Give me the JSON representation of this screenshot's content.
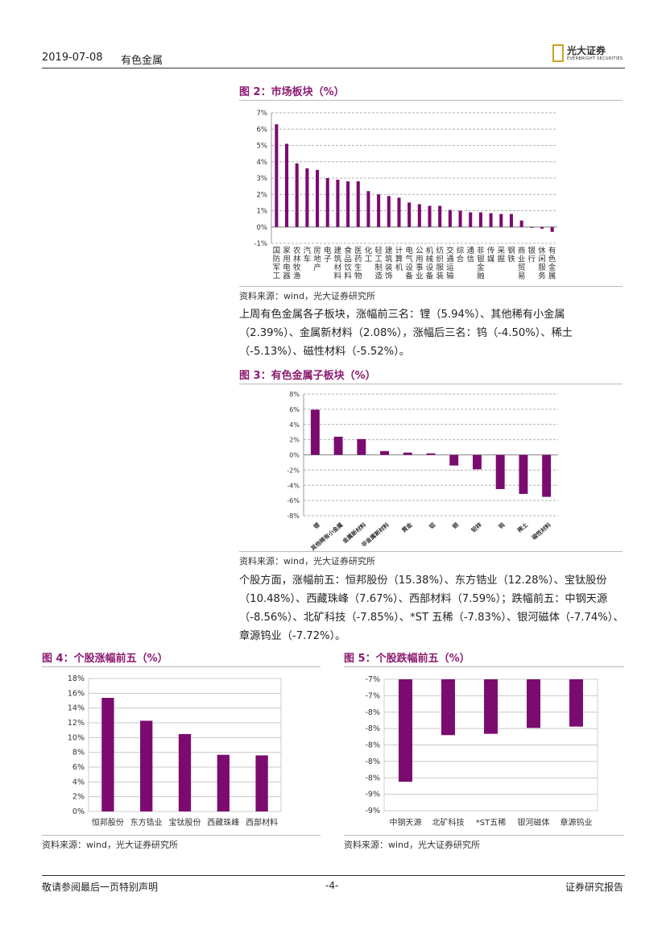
{
  "header": {
    "date": "2019-07-08",
    "sector": "有色金属",
    "logo_cn": "光大证券",
    "logo_en": "EVERBRIGHT SECURITIES"
  },
  "colors": {
    "bar": "#7b0b6f",
    "title": "#8b1a70"
  },
  "fig2": {
    "title": "图 2：市场板块（%）",
    "source": "资料来源：wind，光大证券研究所",
    "chart_data": {
      "type": "bar",
      "categories": [
        "国防军工",
        "家用电器",
        "农林牧渔",
        "汽车",
        "房地产",
        "电子",
        "建筑材料",
        "食品饮料",
        "医药生物",
        "化工",
        "轻工制造",
        "建筑装饰",
        "计算机",
        "电气设备",
        "公用事业",
        "机械设备",
        "纺织服装",
        "交通运输",
        "综合",
        "通信",
        "非银金融",
        "传媒",
        "采掘",
        "钢铁",
        "商业贸易",
        "银行",
        "休闲服务",
        "有色金属"
      ],
      "values": [
        6.3,
        5.1,
        3.9,
        3.6,
        3.5,
        3.0,
        2.9,
        2.8,
        2.8,
        2.2,
        2.0,
        1.9,
        1.8,
        1.5,
        1.4,
        1.3,
        1.3,
        1.05,
        1.0,
        0.9,
        0.9,
        0.85,
        0.8,
        0.8,
        0.4,
        -0.05,
        -0.1,
        -0.3
      ],
      "ylim": [
        -1,
        7
      ],
      "yticks": [
        "-1%",
        "0%",
        "1%",
        "2%",
        "3%",
        "4%",
        "5%",
        "6%",
        "7%"
      ]
    }
  },
  "para1": "上周有色金属各子板块，涨幅前三名：锂（5.94%）、其他稀有小金属（2.39%）、金属新材料（2.08%），涨幅后三名：钨（-4.50%）、稀土（-5.13%）、磁性材料（-5.52%）。",
  "fig3": {
    "title": "图 3：有色金属子板块（%）",
    "source": "资料来源：wind，光大证券研究所",
    "chart_data": {
      "type": "bar",
      "categories": [
        "锂",
        "其他稀有小金属",
        "金属新材料",
        "非金属新材料",
        "黄金",
        "铝",
        "铜",
        "铅锌",
        "钨",
        "稀土",
        "磁性材料"
      ],
      "values": [
        5.94,
        2.39,
        2.08,
        0.5,
        0.3,
        0.2,
        -1.4,
        -1.9,
        -4.5,
        -5.13,
        -5.52
      ],
      "ylim": [
        -8,
        8
      ],
      "yticks": [
        "-8%",
        "-6%",
        "-4%",
        "-2%",
        "0%",
        "2%",
        "4%",
        "6%",
        "8%"
      ]
    }
  },
  "para2": "个股方面，涨幅前五：恒邦股份（15.38%）、东方锆业（12.28%）、宝钛股份（10.48%）、西藏珠峰（7.67%）、西部材料（7.59%）；跌幅前五：中钢天源（-8.56%）、北矿科技（-7.85%）、*ST 五稀（-7.83%）、银河磁体（-7.74%）、章源钨业（-7.72%）。",
  "fig4": {
    "title": "图 4：个股涨幅前五（%）",
    "source": "资料来源：wind，光大证券研究所",
    "chart_data": {
      "type": "bar",
      "categories": [
        "恒邦股份",
        "东方锆业",
        "宝钛股份",
        "西藏珠峰",
        "西部材料"
      ],
      "values": [
        15.38,
        12.28,
        10.48,
        7.67,
        7.59
      ],
      "ylim": [
        0,
        18
      ],
      "yticks": [
        "0%",
        "2%",
        "4%",
        "6%",
        "8%",
        "10%",
        "12%",
        "14%",
        "16%",
        "18%"
      ]
    }
  },
  "fig5": {
    "title": "图 5：个股跌幅前五（%）",
    "source": "资料来源：wind，光大证券研究所",
    "chart_data": {
      "type": "bar",
      "categories": [
        "中钢天源",
        "北矿科技",
        "*ST五稀",
        "银河磁体",
        "章源钨业"
      ],
      "values": [
        -8.56,
        -7.85,
        -7.83,
        -7.74,
        -7.72
      ],
      "ylim": [
        -9,
        -7
      ],
      "yticks": [
        "-9%",
        "-9%",
        "-8%",
        "-8%",
        "-8%",
        "-8%",
        "-8%",
        "-7%",
        "-7%"
      ]
    }
  },
  "footer": {
    "left": "敬请参阅最后一页特别声明",
    "center": "-4-",
    "right": "证券研究报告"
  }
}
